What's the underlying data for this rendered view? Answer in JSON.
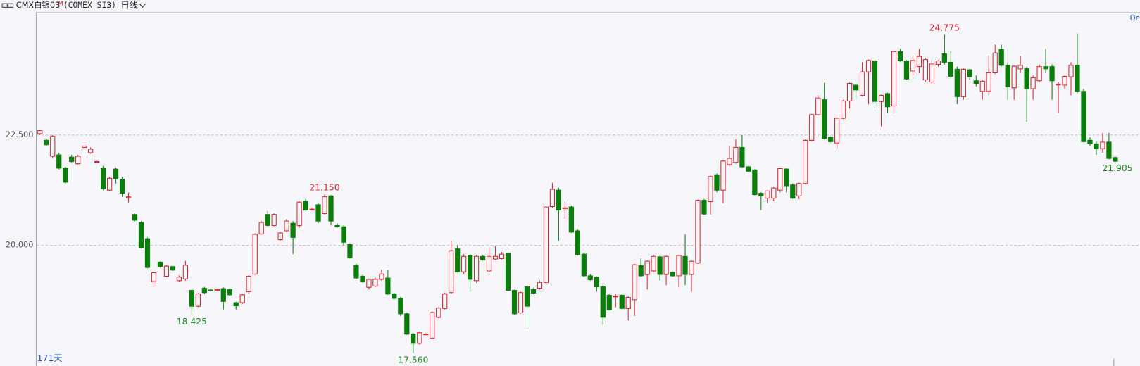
{
  "header": {
    "symbol": "CMX白银03",
    "badge": "M",
    "code": "(COMEX SI3)",
    "period": "日线",
    "corner": "De"
  },
  "chart_data": {
    "type": "candlestick",
    "days_label": "171天",
    "up_color": "#e0212a",
    "down_color": "#0a7d0a",
    "grid": true,
    "ylim": [
      17.3,
      25.28
    ],
    "yticks": [
      {
        "value": 20,
        "label": "20.000"
      },
      {
        "value": 22.5,
        "label": "22.500"
      }
    ],
    "ohlc": [
      [
        22.53,
        22.62,
        22.5,
        22.6
      ],
      [
        22.38,
        22.42,
        22.25,
        22.28
      ],
      [
        22.02,
        22.5,
        21.98,
        22.47
      ],
      [
        22.05,
        22.1,
        21.72,
        21.75
      ],
      [
        21.75,
        21.78,
        21.38,
        21.43
      ],
      [
        22.0,
        22.05,
        21.88,
        21.9
      ],
      [
        21.85,
        22.05,
        21.83,
        22.02
      ],
      [
        22.22,
        22.26,
        22.2,
        22.25
      ],
      [
        22.1,
        22.22,
        22.08,
        22.18
      ],
      [
        21.9,
        21.92,
        21.88,
        21.9
      ],
      [
        21.75,
        21.8,
        21.25,
        21.28
      ],
      [
        21.25,
        21.55,
        21.22,
        21.52
      ],
      [
        21.73,
        21.76,
        21.4,
        21.51
      ],
      [
        21.5,
        21.55,
        21.1,
        21.18
      ],
      [
        21.08,
        21.2,
        20.97,
        21.1
      ],
      [
        20.7,
        20.72,
        20.55,
        20.57
      ],
      [
        20.52,
        20.55,
        19.93,
        19.95
      ],
      [
        20.15,
        20.18,
        19.48,
        19.5
      ],
      [
        19.18,
        19.4,
        19.05,
        19.38
      ],
      [
        19.62,
        19.64,
        19.5,
        19.52
      ],
      [
        19.3,
        19.55,
        19.28,
        19.53
      ],
      [
        19.52,
        19.54,
        19.42,
        19.44
      ],
      [
        19.2,
        19.32,
        19.18,
        19.28
      ],
      [
        19.24,
        19.65,
        19.2,
        19.55
      ],
      [
        18.98,
        19.0,
        18.425,
        18.62
      ],
      [
        18.62,
        18.92,
        18.6,
        18.9
      ],
      [
        19.03,
        19.06,
        18.9,
        18.93
      ],
      [
        18.99,
        19.02,
        18.96,
        18.98
      ],
      [
        18.98,
        19.02,
        18.96,
        19.0
      ],
      [
        19.02,
        19.05,
        18.55,
        18.73
      ],
      [
        19.0,
        19.03,
        18.85,
        18.88
      ],
      [
        18.7,
        18.72,
        18.55,
        18.63
      ],
      [
        18.7,
        18.9,
        18.67,
        18.88
      ],
      [
        18.95,
        19.32,
        18.9,
        19.3
      ],
      [
        19.35,
        20.27,
        19.33,
        20.25
      ],
      [
        20.26,
        20.55,
        20.24,
        20.52
      ],
      [
        20.7,
        20.78,
        20.43,
        20.45
      ],
      [
        20.45,
        20.73,
        20.43,
        20.7
      ],
      [
        20.13,
        20.3,
        20.1,
        20.28
      ],
      [
        20.33,
        20.6,
        20.3,
        20.55
      ],
      [
        20.5,
        20.55,
        19.8,
        20.18
      ],
      [
        20.45,
        21.0,
        20.4,
        20.98
      ],
      [
        21.0,
        21.05,
        20.78,
        20.8
      ],
      [
        20.82,
        20.85,
        20.8,
        20.82
      ],
      [
        20.92,
        20.97,
        20.5,
        20.55
      ],
      [
        20.72,
        21.15,
        20.7,
        21.1
      ],
      [
        21.12,
        21.14,
        20.45,
        20.55
      ],
      [
        20.45,
        20.5,
        20.4,
        20.42
      ],
      [
        20.42,
        20.45,
        20.0,
        20.07
      ],
      [
        20.02,
        20.05,
        19.7,
        19.72
      ],
      [
        19.55,
        19.58,
        19.24,
        19.26
      ],
      [
        19.3,
        19.33,
        19.15,
        19.18
      ],
      [
        19.05,
        19.25,
        19.0,
        19.23
      ],
      [
        19.08,
        19.27,
        19.05,
        19.23
      ],
      [
        19.23,
        19.45,
        19.2,
        19.35
      ],
      [
        19.26,
        19.45,
        18.88,
        18.9
      ],
      [
        18.9,
        18.93,
        18.78,
        18.8
      ],
      [
        18.8,
        18.83,
        18.4,
        18.45
      ],
      [
        18.45,
        18.48,
        17.97,
        17.99
      ],
      [
        17.99,
        18.02,
        17.56,
        17.78
      ],
      [
        17.78,
        18.05,
        17.75,
        18.02
      ],
      [
        17.99,
        18.01,
        17.97,
        17.99
      ],
      [
        17.9,
        18.5,
        17.87,
        18.48
      ],
      [
        18.37,
        18.6,
        18.35,
        18.58
      ],
      [
        18.57,
        18.93,
        18.55,
        18.9
      ],
      [
        18.93,
        20.1,
        18.9,
        19.88
      ],
      [
        19.92,
        20.0,
        19.38,
        19.4
      ],
      [
        19.4,
        19.8,
        19.35,
        19.75
      ],
      [
        19.77,
        19.8,
        18.95,
        19.23
      ],
      [
        19.2,
        19.78,
        19.15,
        19.75
      ],
      [
        19.75,
        19.78,
        19.65,
        19.67
      ],
      [
        19.42,
        19.95,
        19.4,
        19.75
      ],
      [
        19.69,
        19.98,
        19.67,
        19.75
      ],
      [
        19.7,
        19.85,
        19.68,
        19.8
      ],
      [
        19.82,
        19.84,
        18.96,
        18.98
      ],
      [
        18.98,
        19.0,
        18.43,
        18.45
      ],
      [
        18.47,
        18.95,
        18.45,
        18.93
      ],
      [
        19.06,
        19.08,
        18.1,
        18.62
      ],
      [
        19.0,
        19.03,
        18.9,
        18.92
      ],
      [
        19.03,
        19.2,
        19.0,
        19.16
      ],
      [
        19.16,
        20.9,
        19.14,
        20.87
      ],
      [
        20.88,
        21.42,
        20.85,
        21.27
      ],
      [
        21.25,
        21.3,
        20.1,
        20.8
      ],
      [
        20.85,
        21.0,
        20.6,
        20.85
      ],
      [
        20.87,
        20.9,
        20.28,
        20.3
      ],
      [
        20.33,
        20.36,
        19.77,
        19.79
      ],
      [
        19.8,
        19.83,
        19.28,
        19.31
      ],
      [
        19.31,
        19.35,
        19.2,
        19.22
      ],
      [
        19.28,
        19.3,
        18.95,
        19.06
      ],
      [
        19.06,
        19.1,
        18.2,
        18.37
      ],
      [
        18.87,
        18.9,
        18.52,
        18.54
      ],
      [
        18.85,
        18.9,
        18.6,
        18.85
      ],
      [
        18.87,
        18.9,
        18.55,
        18.57
      ],
      [
        18.57,
        18.85,
        18.3,
        18.82
      ],
      [
        18.77,
        19.58,
        18.4,
        19.56
      ],
      [
        19.54,
        19.7,
        19.29,
        19.31
      ],
      [
        19.34,
        19.66,
        19.0,
        19.64
      ],
      [
        19.42,
        19.78,
        19.4,
        19.75
      ],
      [
        19.74,
        19.76,
        19.2,
        19.34
      ],
      [
        19.34,
        19.77,
        19.1,
        19.75
      ],
      [
        19.39,
        19.41,
        19.29,
        19.31
      ],
      [
        19.31,
        19.79,
        19.05,
        19.77
      ],
      [
        19.75,
        20.25,
        19.1,
        19.34
      ],
      [
        19.34,
        19.66,
        18.95,
        19.64
      ],
      [
        19.6,
        21.04,
        19.58,
        21.02
      ],
      [
        21.02,
        21.05,
        20.69,
        20.71
      ],
      [
        20.99,
        21.58,
        20.7,
        21.56
      ],
      [
        21.6,
        21.63,
        21.2,
        21.25
      ],
      [
        21.25,
        21.93,
        20.95,
        21.91
      ],
      [
        21.83,
        22.25,
        21.8,
        21.97
      ],
      [
        21.88,
        22.4,
        21.85,
        22.22
      ],
      [
        22.22,
        22.5,
        21.76,
        21.78
      ],
      [
        21.78,
        21.8,
        21.66,
        21.68
      ],
      [
        21.71,
        21.73,
        21.13,
        21.15
      ],
      [
        21.18,
        21.2,
        20.8,
        21.12
      ],
      [
        21.07,
        21.25,
        20.95,
        21.23
      ],
      [
        21.07,
        21.33,
        21.0,
        21.3
      ],
      [
        21.25,
        21.76,
        21.2,
        21.74
      ],
      [
        21.73,
        21.75,
        21.2,
        21.35
      ],
      [
        21.37,
        21.4,
        21.05,
        21.07
      ],
      [
        21.12,
        21.42,
        21.05,
        21.4
      ],
      [
        21.4,
        22.4,
        21.38,
        22.38
      ],
      [
        22.38,
        22.98,
        22.36,
        22.96
      ],
      [
        22.96,
        23.4,
        22.94,
        23.34
      ],
      [
        23.3,
        23.68,
        22.4,
        22.42
      ],
      [
        22.45,
        22.47,
        22.33,
        22.35
      ],
      [
        22.32,
        22.9,
        22.2,
        22.88
      ],
      [
        22.88,
        23.3,
        22.86,
        23.27
      ],
      [
        23.27,
        23.69,
        23.1,
        23.67
      ],
      [
        23.63,
        23.65,
        23.3,
        23.52
      ],
      [
        23.4,
        24.15,
        23.38,
        23.93
      ],
      [
        23.93,
        24.21,
        23.2,
        24.19
      ],
      [
        24.18,
        24.2,
        23.1,
        23.26
      ],
      [
        23.26,
        23.42,
        22.7,
        23.4
      ],
      [
        23.44,
        23.46,
        23.0,
        23.14
      ],
      [
        23.16,
        24.41,
        23.0,
        24.39
      ],
      [
        24.39,
        24.45,
        24.16,
        24.18
      ],
      [
        24.18,
        24.2,
        23.75,
        23.77
      ],
      [
        23.95,
        24.3,
        23.85,
        24.19
      ],
      [
        24.05,
        24.45,
        23.9,
        24.28
      ],
      [
        23.75,
        24.25,
        23.7,
        24.21
      ],
      [
        23.7,
        24.2,
        23.65,
        24.11
      ],
      [
        24.1,
        24.2,
        24.05,
        24.18
      ],
      [
        24.34,
        24.775,
        24.1,
        24.15
      ],
      [
        24.15,
        24.4,
        23.8,
        23.83
      ],
      [
        23.99,
        24.05,
        23.2,
        23.37
      ],
      [
        23.37,
        24.02,
        23.3,
        23.99
      ],
      [
        23.98,
        24.0,
        23.75,
        23.82
      ],
      [
        23.73,
        23.85,
        23.6,
        23.67
      ],
      [
        23.49,
        23.75,
        23.3,
        23.72
      ],
      [
        23.49,
        24.3,
        23.4,
        23.91
      ],
      [
        23.91,
        24.55,
        23.88,
        24.36
      ],
      [
        24.44,
        24.55,
        24.05,
        24.08
      ],
      [
        24.08,
        24.15,
        23.3,
        23.59
      ],
      [
        23.57,
        24.08,
        23.3,
        24.06
      ],
      [
        24.0,
        24.3,
        23.9,
        24.08
      ],
      [
        24.01,
        24.05,
        22.8,
        23.55
      ],
      [
        23.55,
        23.85,
        23.3,
        23.8
      ],
      [
        23.73,
        24.1,
        23.7,
        24.05
      ],
      [
        24.05,
        24.45,
        23.9,
        24.0
      ],
      [
        24.05,
        24.1,
        23.3,
        23.73
      ],
      [
        23.65,
        23.7,
        23.0,
        23.65
      ],
      [
        23.63,
        23.85,
        23.55,
        23.83
      ],
      [
        23.82,
        24.15,
        23.4,
        24.08
      ],
      [
        24.08,
        24.8,
        23.45,
        23.49
      ],
      [
        23.49,
        23.55,
        22.33,
        22.35
      ],
      [
        22.38,
        22.45,
        22.25,
        22.3
      ],
      [
        22.3,
        22.35,
        22.05,
        22.19
      ],
      [
        22.19,
        22.55,
        22.1,
        22.34
      ],
      [
        22.34,
        22.55,
        21.95,
        21.97
      ],
      [
        21.99,
        22.01,
        21.9,
        21.905
      ]
    ],
    "annotations": [
      {
        "text": "24.775",
        "field": "high",
        "color": "#e0212a"
      },
      {
        "text": "21.150",
        "field": "high",
        "color": "#e0212a"
      },
      {
        "text": "18.425",
        "field": "low",
        "color": "#1a8a1a"
      },
      {
        "text": "17.560",
        "field": "low",
        "color": "#1a8a1a"
      },
      {
        "text": "21.905",
        "field": "close",
        "color": "#1a8a1a"
      }
    ]
  }
}
